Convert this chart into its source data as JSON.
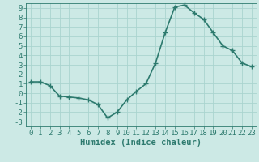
{
  "x": [
    0,
    1,
    2,
    3,
    4,
    5,
    6,
    7,
    8,
    9,
    10,
    11,
    12,
    13,
    14,
    15,
    16,
    17,
    18,
    19,
    20,
    21,
    22,
    23
  ],
  "y": [
    1.2,
    1.2,
    0.8,
    -0.3,
    -0.4,
    -0.5,
    -0.7,
    -1.2,
    -2.6,
    -2.0,
    -0.7,
    0.2,
    1.0,
    3.2,
    6.4,
    9.1,
    9.3,
    8.5,
    7.8,
    6.4,
    5.0,
    4.5,
    3.2,
    2.8
  ],
  "line_color": "#2d7a6e",
  "marker": "+",
  "marker_size": 4,
  "linewidth": 1.2,
  "xlabel": "Humidex (Indice chaleur)",
  "xlim": [
    -0.5,
    23.5
  ],
  "ylim": [
    -3.5,
    9.5
  ],
  "yticks": [
    -3,
    -2,
    -1,
    0,
    1,
    2,
    3,
    4,
    5,
    6,
    7,
    8,
    9
  ],
  "xticks": [
    0,
    1,
    2,
    3,
    4,
    5,
    6,
    7,
    8,
    9,
    10,
    11,
    12,
    13,
    14,
    15,
    16,
    17,
    18,
    19,
    20,
    21,
    22,
    23
  ],
  "bg_color": "#cce9e5",
  "grid_color": "#aad4cf",
  "tick_color": "#2d7a6e",
  "label_color": "#2d7a6e",
  "tick_fontsize": 6.5,
  "xlabel_fontsize": 7.5
}
